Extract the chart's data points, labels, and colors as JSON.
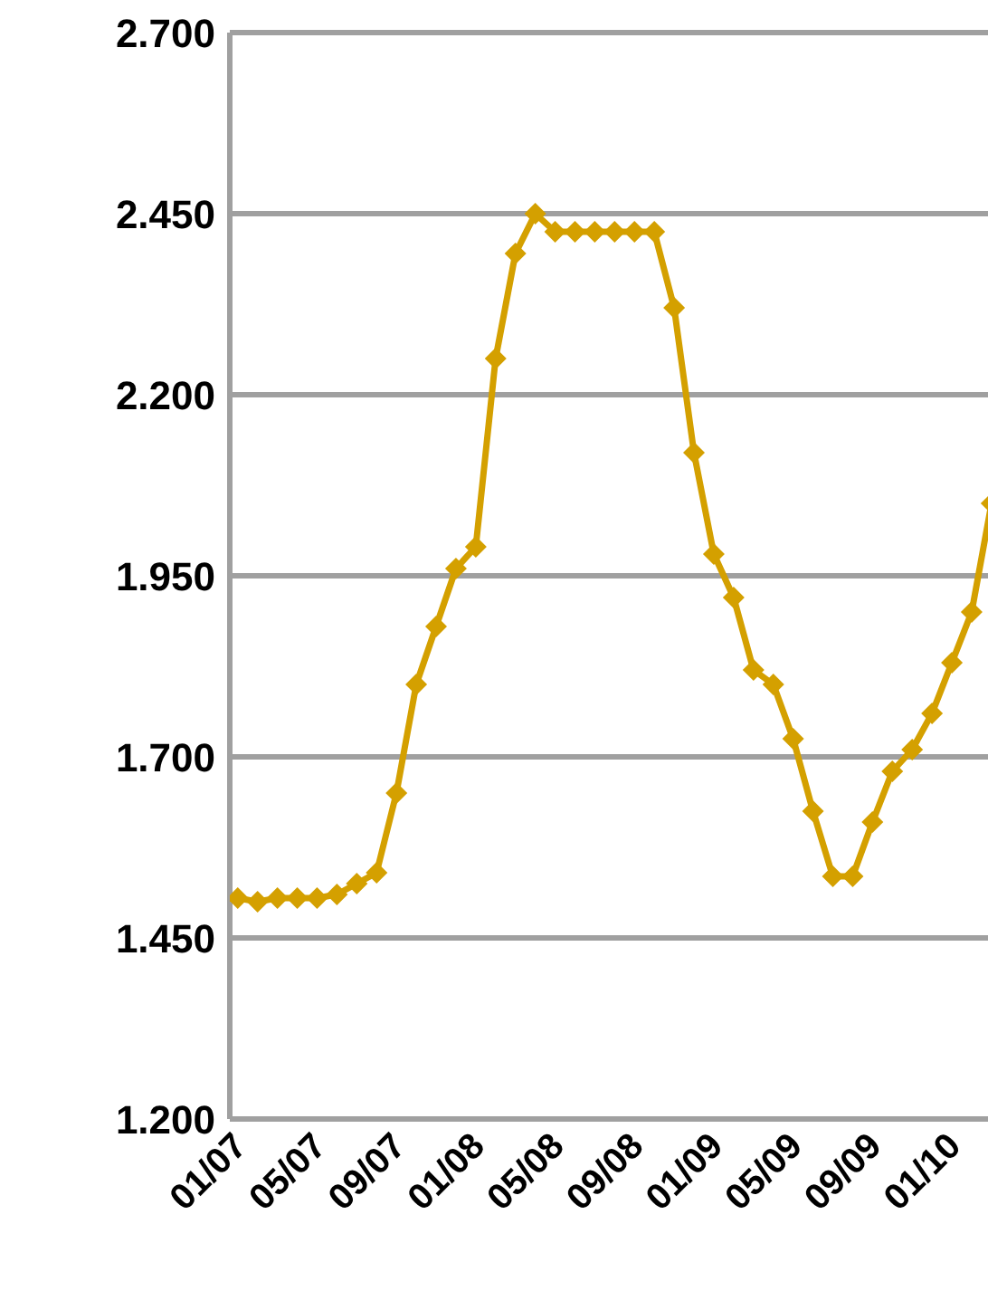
{
  "chart_data": {
    "type": "line",
    "categories": [
      "01/07",
      null,
      null,
      null,
      "05/07",
      null,
      null,
      null,
      "09/07",
      null,
      null,
      null,
      "01/08",
      null,
      null,
      null,
      "05/08",
      null,
      null,
      null,
      "09/08",
      null,
      null,
      null,
      "01/09",
      null,
      null,
      null,
      "05/09",
      null,
      null,
      null,
      "09/09",
      null,
      null,
      null,
      "01/10",
      null,
      null
    ],
    "series": [
      {
        "color": "#d4a000",
        "values": [
          1.505,
          1.5,
          1.505,
          1.505,
          1.505,
          1.51,
          1.525,
          1.54,
          1.65,
          1.8,
          1.88,
          1.96,
          1.99,
          2.25,
          2.395,
          2.45,
          2.425,
          2.425,
          2.425,
          2.425,
          2.425,
          2.425,
          2.32,
          2.12,
          1.98,
          1.92,
          1.82,
          1.8,
          1.725,
          1.625,
          1.535,
          1.535,
          1.61,
          1.68,
          1.71,
          1.76,
          1.83,
          1.9,
          2.05
        ]
      }
    ],
    "ylim": [
      1.2,
      2.7
    ],
    "yticks": [
      {
        "value": 1.2,
        "label": "1.200"
      },
      {
        "value": 1.45,
        "label": "1.450"
      },
      {
        "value": 1.7,
        "label": "1.700"
      },
      {
        "value": 1.95,
        "label": "1.950"
      },
      {
        "value": 2.2,
        "label": "2.200"
      },
      {
        "value": 2.45,
        "label": "2.450"
      },
      {
        "value": 2.7,
        "label": "2.700"
      }
    ],
    "grid": "y",
    "marker": "diamond",
    "line_style": "solid"
  }
}
